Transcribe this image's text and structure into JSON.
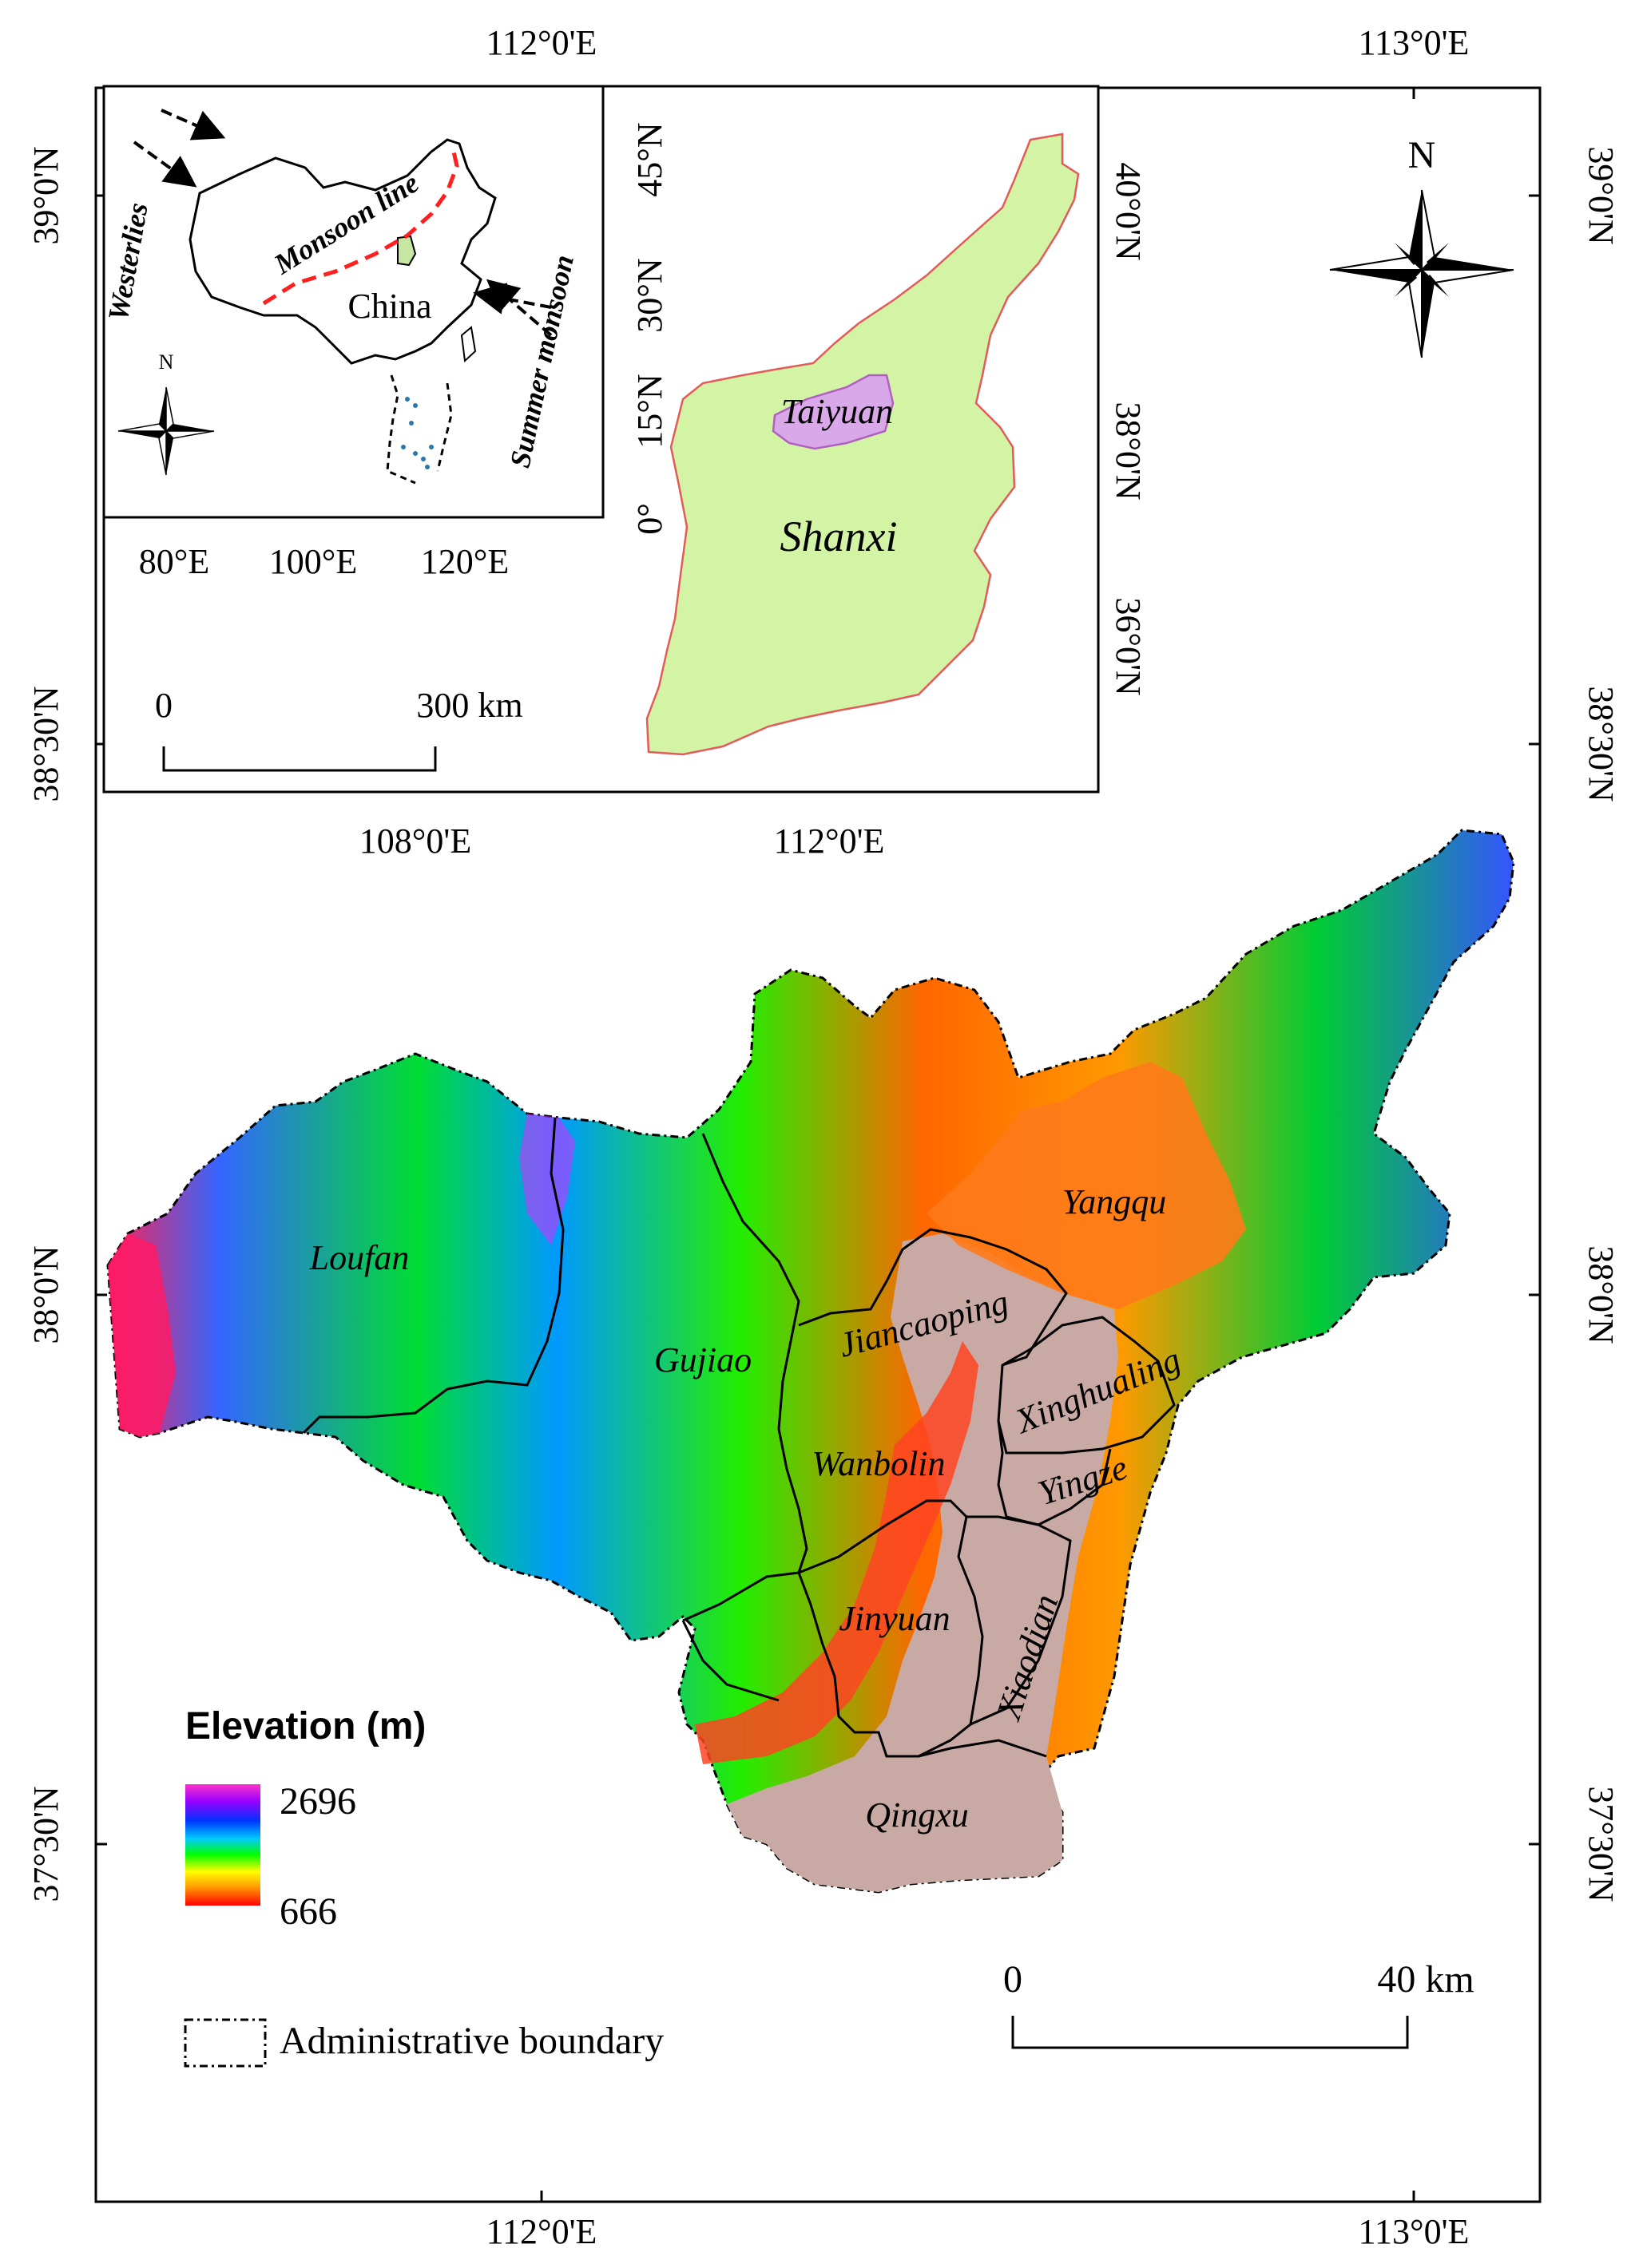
{
  "main_map": {
    "top_coords": [
      "112°0'E",
      "113°0'E"
    ],
    "bottom_coords": [
      "112°0'E",
      "113°0'E"
    ],
    "left_coords": [
      "39°0'N",
      "38°30'N",
      "38°0'N",
      "37°30'N"
    ],
    "right_coords": [
      "39°0'N",
      "38°30'N",
      "38°0'N",
      "37°30'N"
    ],
    "places": [
      "Loufan",
      "Gujiao",
      "Jiancaoping",
      "Yangqu",
      "Xinghualing",
      "Wanbolin",
      "Yingze",
      "Jinyuan",
      "Xiaodian",
      "Qingxu"
    ],
    "north_label": "N",
    "scale": {
      "start": "0",
      "end": "40 km"
    }
  },
  "legend": {
    "title": "Elevation (m)",
    "max": "2696",
    "min": "666",
    "boundary_label": "Administrative boundary",
    "colors": [
      "#ff33cc",
      "#9900ff",
      "#0033ff",
      "#00ccff",
      "#00ff00",
      "#ffff00",
      "#ff9900",
      "#ff0000"
    ]
  },
  "inset_china": {
    "labels": [
      "Westerlies",
      "Monsoon line",
      "China",
      "Summer monsoon"
    ],
    "lon_ticks": [
      "80°E",
      "100°E",
      "120°E"
    ],
    "north_label": "N",
    "scale": {
      "start": "0",
      "end": "300 km"
    },
    "bottom_coords": [
      "108°0'E",
      "112°0'E"
    ]
  },
  "inset_shanxi": {
    "lat_ticks_left": [
      "45°N",
      "30°N",
      "15°N",
      "0°"
    ],
    "lat_ticks_right": [
      "40°0'N",
      "38°0'N",
      "36°0'N"
    ],
    "labels": [
      "Taiyuan",
      "Shanxi"
    ]
  }
}
